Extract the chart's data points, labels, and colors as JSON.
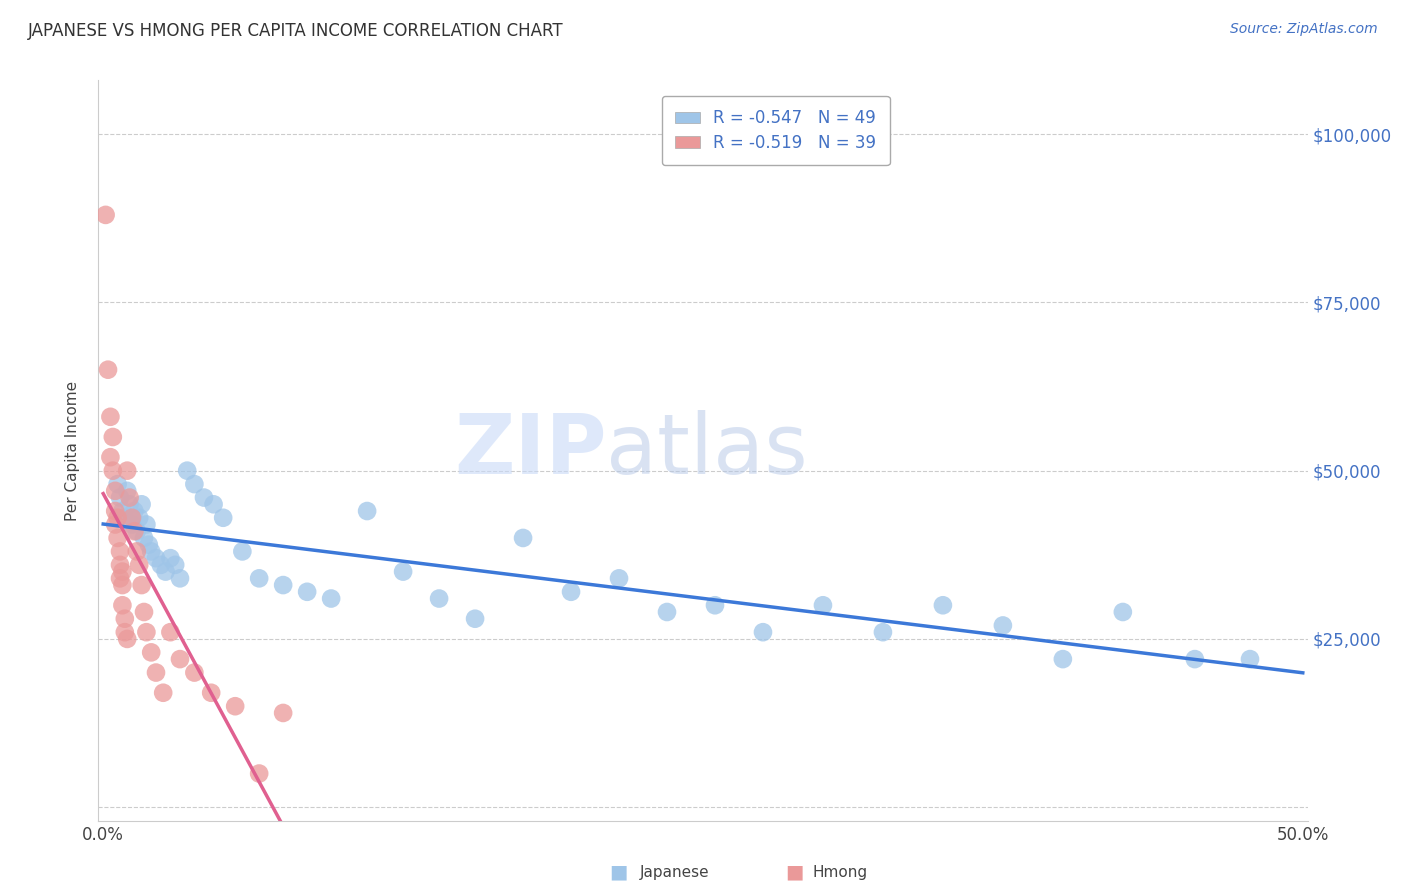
{
  "title": "JAPANESE VS HMONG PER CAPITA INCOME CORRELATION CHART",
  "source": "Source: ZipAtlas.com",
  "ylabel": "Per Capita Income",
  "watermark_zip": "ZIP",
  "watermark_atlas": "atlas",
  "legend_label1": "R = -0.547   N = 49",
  "legend_label2": "R = -0.519   N = 39",
  "color_japanese": "#9fc5e8",
  "color_hmong": "#ea9999",
  "trendline_japanese": "#3c78d8",
  "trendline_hmong": "#e06090",
  "background": "#ffffff",
  "xlim": [
    -0.002,
    0.502
  ],
  "ylim": [
    -2000,
    108000
  ],
  "yticks": [
    0,
    25000,
    50000,
    75000,
    100000
  ],
  "ytick_labels": [
    "",
    "$25,000",
    "$50,000",
    "$75,000",
    "$100,000"
  ],
  "xticks": [
    0.0,
    0.1,
    0.2,
    0.3,
    0.4,
    0.5
  ],
  "xtick_labels": [
    "0.0%",
    "",
    "",
    "",
    "",
    "50.0%"
  ],
  "japanese_x": [
    0.006,
    0.007,
    0.008,
    0.009,
    0.01,
    0.011,
    0.012,
    0.013,
    0.014,
    0.015,
    0.016,
    0.017,
    0.018,
    0.019,
    0.02,
    0.022,
    0.024,
    0.026,
    0.028,
    0.03,
    0.032,
    0.035,
    0.038,
    0.042,
    0.046,
    0.05,
    0.058,
    0.065,
    0.075,
    0.085,
    0.095,
    0.11,
    0.125,
    0.14,
    0.155,
    0.175,
    0.195,
    0.215,
    0.235,
    0.255,
    0.275,
    0.3,
    0.325,
    0.35,
    0.375,
    0.4,
    0.425,
    0.455,
    0.478
  ],
  "japanese_y": [
    48000,
    46000,
    44000,
    43000,
    47000,
    45000,
    42000,
    44000,
    41000,
    43000,
    45000,
    40000,
    42000,
    39000,
    38000,
    37000,
    36000,
    35000,
    37000,
    36000,
    34000,
    50000,
    48000,
    46000,
    45000,
    43000,
    38000,
    34000,
    33000,
    32000,
    31000,
    44000,
    35000,
    31000,
    28000,
    40000,
    32000,
    34000,
    29000,
    30000,
    26000,
    30000,
    26000,
    30000,
    27000,
    22000,
    29000,
    22000,
    22000
  ],
  "hmong_x": [
    0.001,
    0.002,
    0.003,
    0.003,
    0.004,
    0.004,
    0.005,
    0.005,
    0.005,
    0.006,
    0.006,
    0.007,
    0.007,
    0.007,
    0.008,
    0.008,
    0.008,
    0.009,
    0.009,
    0.01,
    0.01,
    0.011,
    0.012,
    0.013,
    0.014,
    0.015,
    0.016,
    0.017,
    0.018,
    0.02,
    0.022,
    0.025,
    0.028,
    0.032,
    0.038,
    0.045,
    0.055,
    0.065,
    0.075
  ],
  "hmong_y": [
    88000,
    65000,
    58000,
    52000,
    55000,
    50000,
    47000,
    44000,
    42000,
    43000,
    40000,
    38000,
    36000,
    34000,
    35000,
    33000,
    30000,
    28000,
    26000,
    25000,
    50000,
    46000,
    43000,
    41000,
    38000,
    36000,
    33000,
    29000,
    26000,
    23000,
    20000,
    17000,
    26000,
    22000,
    20000,
    17000,
    15000,
    5000,
    14000
  ]
}
